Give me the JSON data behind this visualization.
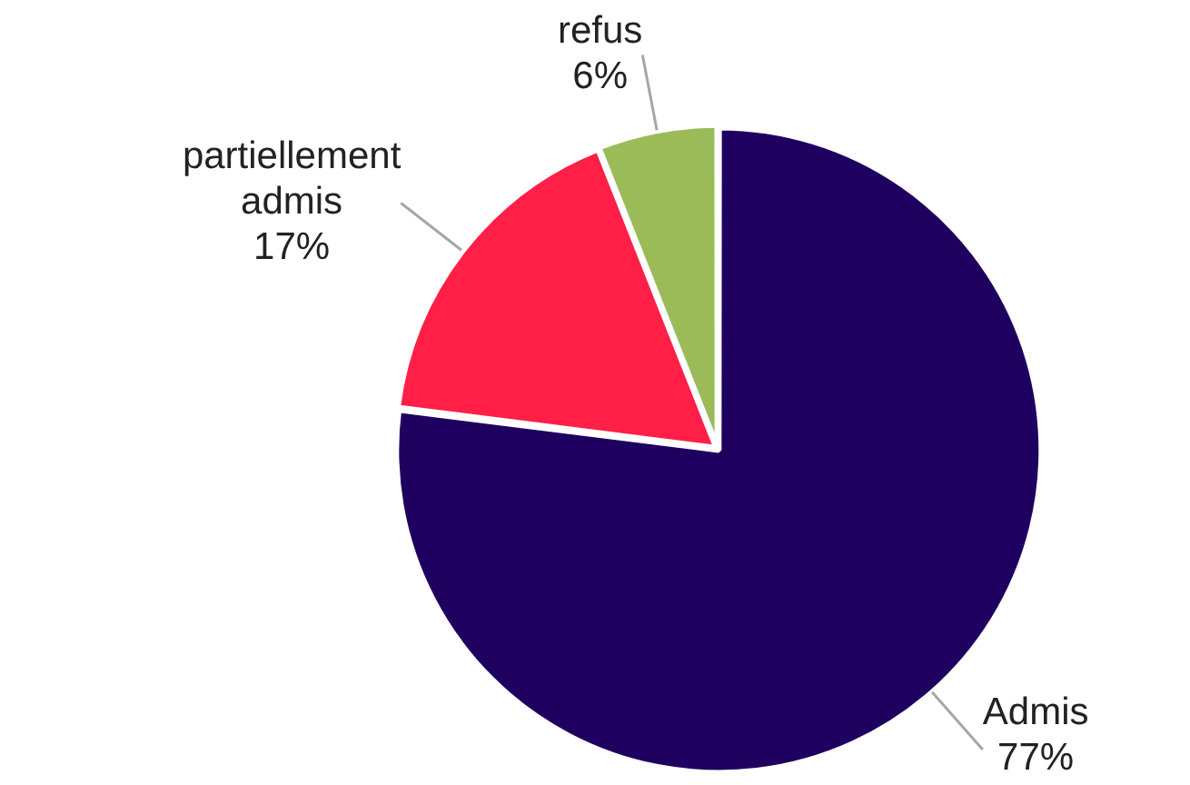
{
  "chart_data": {
    "type": "pie",
    "categories": [
      "Admis",
      "partiellement admis",
      "refus"
    ],
    "values": [
      77,
      17,
      6
    ],
    "value_labels": [
      "77%",
      "17%",
      "6%"
    ],
    "colors": [
      "#1f0060",
      "#ff1f47",
      "#9bbb59"
    ],
    "legend": false
  }
}
